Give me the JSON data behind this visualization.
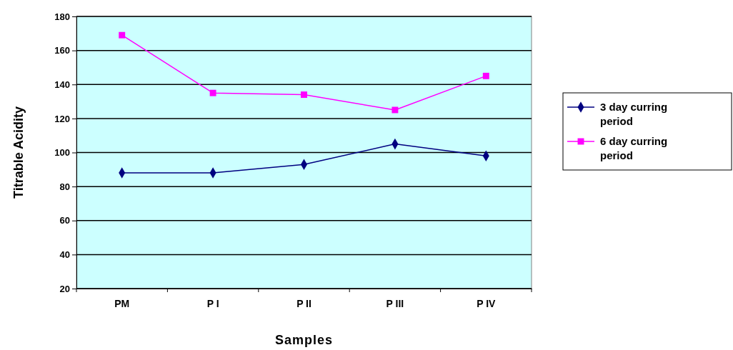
{
  "chart_data": {
    "type": "line",
    "xlabel": "Samples",
    "ylabel": "Titrable Acidity",
    "categories": [
      "PM",
      "P I",
      "P II",
      "P III",
      "P IV"
    ],
    "series": [
      {
        "name": "3 day curring period",
        "color": "#000080",
        "marker": "diamond",
        "values": [
          88,
          88,
          93,
          105,
          98
        ]
      },
      {
        "name": "6 day curring period",
        "color": "#ff00ff",
        "marker": "square",
        "values": [
          169,
          135,
          134,
          125,
          145
        ]
      }
    ],
    "ylim": [
      20,
      180
    ],
    "yticks": [
      20,
      40,
      60,
      80,
      100,
      120,
      140,
      160,
      180
    ],
    "grid": "y",
    "legend": "right"
  }
}
